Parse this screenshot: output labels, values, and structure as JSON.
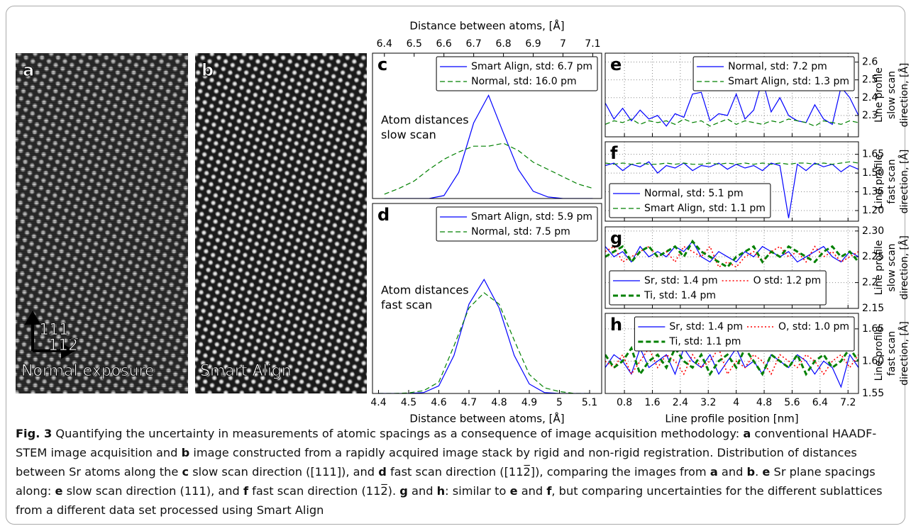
{
  "images": [
    {
      "label": "a",
      "caption": "Normal exposure"
    },
    {
      "label": "b",
      "caption": "Smart Align"
    }
  ],
  "directions": {
    "vertical": "111",
    "horizontal": "112̅"
  },
  "chart_data": [
    {
      "type": "line",
      "label": "c",
      "xlabel": "Distance between atoms, [Å]",
      "xtick_labels": "top",
      "grid": false,
      "annotation": [
        "Atom distances",
        "slow scan"
      ],
      "x": [
        6.4,
        6.45,
        6.5,
        6.55,
        6.6,
        6.65,
        6.7,
        6.75,
        6.8,
        6.85,
        6.9,
        6.95,
        7.0,
        7.05,
        7.1
      ],
      "xlim": [
        6.36,
        7.13
      ],
      "xticks": [
        6.4,
        6.5,
        6.6,
        6.7,
        6.8,
        6.9,
        7.0,
        7.1
      ],
      "ylim": [
        0,
        1
      ],
      "legend": "upper right",
      "legend_ncol": 1,
      "series": [
        {
          "name": "Smart Align, std: 6.7 pm",
          "color": "#0000ff",
          "dash": "",
          "linewidth": 1.2,
          "values": [
            0,
            0,
            0,
            0,
            0.02,
            0.18,
            0.52,
            0.71,
            0.45,
            0.2,
            0.05,
            0.01,
            0,
            0,
            0
          ]
        },
        {
          "name": "Normal, std: 16.0 pm",
          "color": "#008000",
          "dash": "7,4",
          "linewidth": 1.2,
          "values": [
            0.03,
            0.07,
            0.12,
            0.2,
            0.27,
            0.32,
            0.36,
            0.36,
            0.38,
            0.33,
            0.25,
            0.2,
            0.15,
            0.1,
            0.07
          ]
        }
      ]
    },
    {
      "type": "line",
      "label": "d",
      "xlabel": "Distance between atoms, [Å]",
      "xtick_labels": "bottom",
      "grid": false,
      "annotation": [
        "Atom distances",
        "fast scan"
      ],
      "x": [
        4.4,
        4.45,
        4.5,
        4.55,
        4.6,
        4.65,
        4.7,
        4.75,
        4.8,
        4.85,
        4.9,
        4.95,
        5.0,
        5.05,
        5.1
      ],
      "xlim": [
        4.38,
        5.14
      ],
      "xticks": [
        4.4,
        4.5,
        4.6,
        4.7,
        4.8,
        4.9,
        5.0,
        5.1
      ],
      "ylim": [
        0,
        1
      ],
      "legend": "upper right",
      "legend_ncol": 1,
      "series": [
        {
          "name": "Smart Align, std: 5.9 pm",
          "color": "#0000ff",
          "dash": "",
          "linewidth": 1.2,
          "values": [
            0,
            0,
            0,
            0.005,
            0.04,
            0.2,
            0.47,
            0.6,
            0.45,
            0.2,
            0.05,
            0.005,
            0,
            0,
            0
          ]
        },
        {
          "name": "Normal, std: 7.5 pm",
          "color": "#008000",
          "dash": "7,4",
          "linewidth": 1.2,
          "values": [
            0,
            0,
            0.003,
            0.015,
            0.06,
            0.25,
            0.45,
            0.53,
            0.47,
            0.28,
            0.1,
            0.03,
            0.01,
            0,
            0
          ]
        }
      ]
    },
    {
      "type": "line",
      "label": "e",
      "xtick_labels": "none",
      "grid": true,
      "ylabel": [
        "Line profile",
        "slow scan",
        "direction, [Å]"
      ],
      "x": [
        0.25,
        0.5,
        0.75,
        1,
        1.25,
        1.5,
        1.75,
        2,
        2.25,
        2.5,
        2.75,
        3,
        3.25,
        3.5,
        3.75,
        4,
        4.25,
        4.5,
        4.75,
        5,
        5.25,
        5.5,
        5.75,
        6,
        6.25,
        6.5,
        6.75,
        7,
        7.25,
        7.5
      ],
      "xlim": [
        0.25,
        7.5
      ],
      "xticks": [
        0.8,
        1.6,
        2.4,
        3.2,
        4,
        4.8,
        5.6,
        6.4,
        7.2
      ],
      "ylim": [
        2.18,
        2.65
      ],
      "yticks": [
        2.3,
        2.4,
        2.5,
        2.6
      ],
      "legend": "upper right",
      "legend_ncol": 1,
      "series": [
        {
          "name": "Normal, std: 7.2 pm",
          "color": "#0000ff",
          "dash": "",
          "linewidth": 1.2,
          "values": [
            2.37,
            2.28,
            2.34,
            2.27,
            2.33,
            2.28,
            2.3,
            2.24,
            2.31,
            2.29,
            2.42,
            2.43,
            2.27,
            2.31,
            2.3,
            2.42,
            2.28,
            2.33,
            2.5,
            2.32,
            2.4,
            2.3,
            2.27,
            2.26,
            2.36,
            2.28,
            2.25,
            2.46,
            2.4,
            2.3
          ]
        },
        {
          "name": "Smart Align, std: 1.3 pm",
          "color": "#008000",
          "dash": "7,4",
          "linewidth": 1.2,
          "values": [
            2.25,
            2.27,
            2.26,
            2.28,
            2.25,
            2.27,
            2.26,
            2.27,
            2.25,
            2.28,
            2.26,
            2.27,
            2.24,
            2.26,
            2.28,
            2.25,
            2.27,
            2.26,
            2.25,
            2.27,
            2.26,
            2.28,
            2.27,
            2.26,
            2.24,
            2.27,
            2.26,
            2.25,
            2.27,
            2.26
          ]
        }
      ]
    },
    {
      "type": "line",
      "label": "f",
      "xtick_labels": "none",
      "grid": true,
      "ylabel": [
        "Line profile",
        "fast scan",
        "direction, [Å]"
      ],
      "x": [
        0.25,
        0.5,
        0.75,
        1,
        1.25,
        1.5,
        1.75,
        2,
        2.25,
        2.5,
        2.75,
        3,
        3.25,
        3.5,
        3.75,
        4,
        4.25,
        4.5,
        4.75,
        5,
        5.25,
        5.5,
        5.75,
        6,
        6.25,
        6.5,
        6.75,
        7,
        7.25,
        7.5
      ],
      "xlim": [
        0.25,
        7.5
      ],
      "xticks": [
        0.8,
        1.6,
        2.4,
        3.2,
        4,
        4.8,
        5.6,
        6.4,
        7.2
      ],
      "ylim": [
        1.115,
        1.75
      ],
      "yticks": [
        {
          "value": 1.2,
          "label": "1.20"
        },
        1.35,
        {
          "value": 1.5,
          "label": "1.50"
        },
        1.65
      ],
      "legend": "lower left",
      "legend_ncol": 1,
      "series": [
        {
          "name": "Normal, std: 5.1 pm",
          "color": "#0000ff",
          "dash": "",
          "linewidth": 1.2,
          "values": [
            1.56,
            1.58,
            1.52,
            1.57,
            1.55,
            1.59,
            1.5,
            1.56,
            1.54,
            1.58,
            1.52,
            1.56,
            1.55,
            1.58,
            1.53,
            1.57,
            1.54,
            1.56,
            1.52,
            1.58,
            1.56,
            1.14,
            1.57,
            1.52,
            1.58,
            1.55,
            1.57,
            1.51,
            1.56,
            1.53
          ]
        },
        {
          "name": "Smart Align, std: 1.1 pm",
          "color": "#008000",
          "dash": "7,4",
          "linewidth": 1.2,
          "values": [
            1.58,
            1.57,
            1.58,
            1.57,
            1.58,
            1.57,
            1.57,
            1.58,
            1.57,
            1.58,
            1.57,
            1.57,
            1.58,
            1.57,
            1.58,
            1.57,
            1.58,
            1.57,
            1.58,
            1.57,
            1.58,
            1.57,
            1.58,
            1.58,
            1.57,
            1.58,
            1.57,
            1.58,
            1.59,
            1.58
          ]
        }
      ]
    },
    {
      "type": "line",
      "label": "g",
      "xtick_labels": "none",
      "grid": true,
      "ylabel": [
        "Line profile",
        "slow scan",
        "direction, [Å]"
      ],
      "x": [
        0.25,
        0.5,
        0.75,
        1,
        1.25,
        1.5,
        1.75,
        2,
        2.25,
        2.5,
        2.75,
        3,
        3.25,
        3.5,
        3.75,
        4,
        4.25,
        4.5,
        4.75,
        5,
        5.25,
        5.5,
        5.75,
        6,
        6.25,
        6.5,
        6.75,
        7,
        7.25,
        7.5
      ],
      "xlim": [
        0.25,
        7.5
      ],
      "xticks": [
        0.8,
        1.6,
        2.4,
        3.2,
        4,
        4.8,
        5.6,
        6.4,
        7.2
      ],
      "ylim": [
        2.15,
        2.308
      ],
      "yticks": [
        2.15,
        2.2,
        2.25,
        {
          "value": 2.3,
          "label": "2.30"
        }
      ],
      "legend": "lower left",
      "legend_ncol": 2,
      "series": [
        {
          "name": "Sr, std: 1.4 pm",
          "color": "#0000ff",
          "dash": "",
          "linewidth": 1.2,
          "values": [
            2.27,
            2.25,
            2.26,
            2.24,
            2.27,
            2.25,
            2.26,
            2.25,
            2.27,
            2.26,
            2.28,
            2.25,
            2.24,
            2.26,
            2.25,
            2.24,
            2.26,
            2.25,
            2.27,
            2.26,
            2.25,
            2.26,
            2.24,
            2.25,
            2.26,
            2.27,
            2.25,
            2.24,
            2.26,
            2.25
          ]
        },
        {
          "name": "O std: 1.2 pm",
          "color": "#ff0000",
          "dash": "2,3",
          "linewidth": 1.6,
          "values": [
            2.26,
            2.27,
            2.24,
            2.25,
            2.26,
            2.27,
            2.25,
            2.26,
            2.24,
            2.27,
            2.26,
            2.25,
            2.27,
            2.23,
            2.24,
            2.23,
            2.25,
            2.26,
            2.24,
            2.26,
            2.27,
            2.25,
            2.26,
            2.24,
            2.27,
            2.25,
            2.26,
            2.24,
            2.25,
            2.26
          ]
        },
        {
          "name": "Ti, std: 1.4 pm",
          "color": "#008000",
          "dash": "7,4",
          "linewidth": 3,
          "values": [
            2.25,
            2.26,
            2.27,
            2.24,
            2.26,
            2.27,
            2.25,
            2.26,
            2.27,
            2.25,
            2.28,
            2.26,
            2.25,
            2.24,
            2.23,
            2.25,
            2.26,
            2.27,
            2.24,
            2.26,
            2.25,
            2.27,
            2.26,
            2.25,
            2.24,
            2.26,
            2.27,
            2.25,
            2.26,
            2.24
          ]
        }
      ]
    },
    {
      "type": "line",
      "label": "h",
      "xlabel": "Line profile position [nm]",
      "xtick_labels": "bottom",
      "grid": true,
      "ylabel": [
        "Line profile",
        "fast scan",
        "direction, [Å]"
      ],
      "x": [
        0.25,
        0.5,
        0.75,
        1,
        1.25,
        1.5,
        1.75,
        2,
        2.25,
        2.5,
        2.75,
        3,
        3.25,
        3.5,
        3.75,
        4,
        4.25,
        4.5,
        4.75,
        5,
        5.25,
        5.5,
        5.75,
        6,
        6.25,
        6.5,
        6.75,
        7,
        7.25,
        7.5
      ],
      "xlim": [
        0.25,
        7.5
      ],
      "xticks": [
        0.8,
        1.6,
        2.4,
        3.2,
        4,
        4.8,
        5.6,
        6.4,
        7.2
      ],
      "ylim": [
        1.55,
        1.674
      ],
      "yticks": [
        1.55,
        {
          "value": 1.6,
          "label": "1.60"
        },
        1.65
      ],
      "legend": "upper right",
      "legend_ncol": 2,
      "series": [
        {
          "name": "Sr, std: 1.4 pm",
          "color": "#0000ff",
          "dash": "",
          "linewidth": 1.2,
          "values": [
            1.59,
            1.61,
            1.6,
            1.58,
            1.62,
            1.59,
            1.6,
            1.61,
            1.58,
            1.62,
            1.6,
            1.59,
            1.61,
            1.58,
            1.6,
            1.62,
            1.59,
            1.6,
            1.58,
            1.61,
            1.6,
            1.59,
            1.61,
            1.6,
            1.58,
            1.6,
            1.59,
            1.56,
            1.61,
            1.59
          ]
        },
        {
          "name": "O, std: 1.0 pm",
          "color": "#ff0000",
          "dash": "2,3",
          "linewidth": 1.6,
          "values": [
            1.6,
            1.59,
            1.61,
            1.58,
            1.6,
            1.62,
            1.59,
            1.61,
            1.6,
            1.58,
            1.61,
            1.59,
            1.6,
            1.62,
            1.58,
            1.6,
            1.59,
            1.61,
            1.6,
            1.58,
            1.61,
            1.6,
            1.59,
            1.61,
            1.6,
            1.58,
            1.6,
            1.61,
            1.59,
            1.61
          ]
        },
        {
          "name": "Ti, std: 1.1 pm",
          "color": "#008000",
          "dash": "7,4",
          "linewidth": 3,
          "values": [
            1.61,
            1.59,
            1.6,
            1.62,
            1.58,
            1.6,
            1.61,
            1.59,
            1.62,
            1.6,
            1.59,
            1.61,
            1.58,
            1.6,
            1.61,
            1.59,
            1.62,
            1.6,
            1.58,
            1.61,
            1.6,
            1.59,
            1.61,
            1.58,
            1.6,
            1.61,
            1.59,
            1.6,
            1.62,
            1.6
          ]
        }
      ]
    }
  ],
  "caption": [
    {
      "text": "Fig. 3",
      "bold": true
    },
    {
      "text": "  Quantifying the uncertainty in measurements of atomic spacings as a consequence of image acquisition methodology: ",
      "bold": false
    },
    {
      "text": "a",
      "bold": true
    },
    {
      "text": " conventional HAADF-STEM image acquisition and ",
      "bold": false
    },
    {
      "text": "b",
      "bold": true
    },
    {
      "text": " image constructed from a rapidly acquired image stack by rigid and non-rigid registration. Distribution of distances between Sr atoms along the ",
      "bold": false
    },
    {
      "text": "c",
      "bold": true
    },
    {
      "text": " slow scan direction ([111]), and ",
      "bold": false
    },
    {
      "text": "d",
      "bold": true
    },
    {
      "text": " fast scan direction ([112̅]), comparing the images from ",
      "bold": false
    },
    {
      "text": "a",
      "bold": true
    },
    {
      "text": " and ",
      "bold": false
    },
    {
      "text": "b",
      "bold": true
    },
    {
      "text": ". ",
      "bold": false
    },
    {
      "text": "e",
      "bold": true
    },
    {
      "text": " Sr plane spacings along: ",
      "bold": false
    },
    {
      "text": "e",
      "bold": true
    },
    {
      "text": " slow scan direction (111), and ",
      "bold": false
    },
    {
      "text": "f",
      "bold": true
    },
    {
      "text": " fast scan direction (112̅). ",
      "bold": false
    },
    {
      "text": "g",
      "bold": true
    },
    {
      "text": " and ",
      "bold": false
    },
    {
      "text": "h",
      "bold": true
    },
    {
      "text": ": similar to ",
      "bold": false
    },
    {
      "text": "e",
      "bold": true
    },
    {
      "text": " and ",
      "bold": false
    },
    {
      "text": "f",
      "bold": true
    },
    {
      "text": ", but comparing uncertainties for the different sublattices from a different data set processed using Smart Align",
      "bold": false
    }
  ]
}
